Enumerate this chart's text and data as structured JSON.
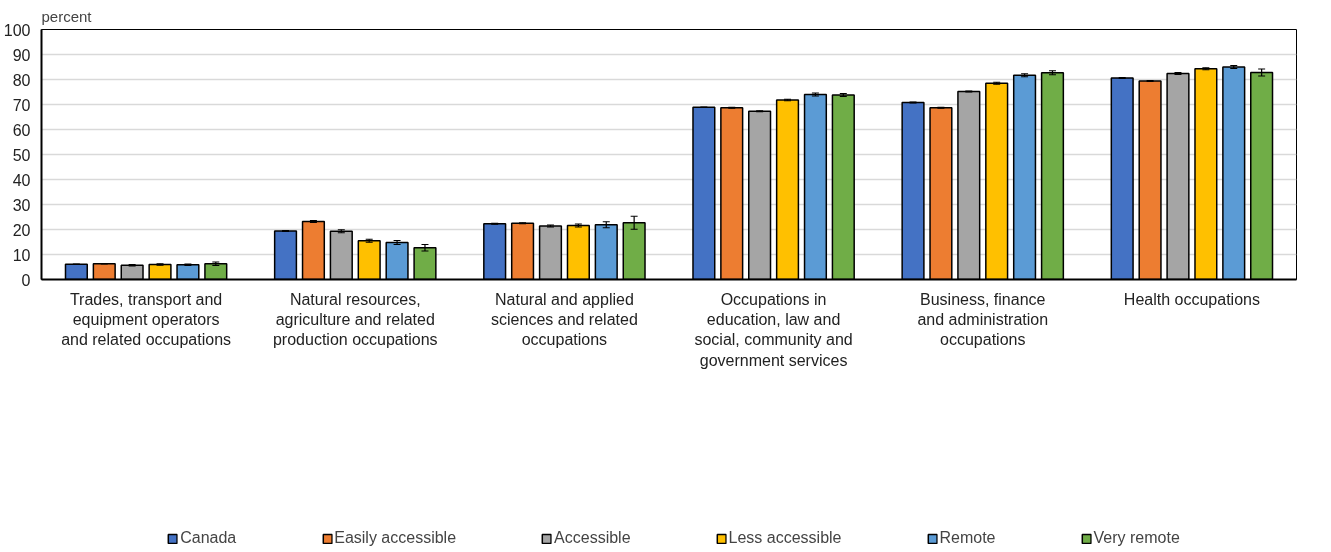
{
  "chart_data": {
    "type": "bar",
    "ylabel": "percent",
    "categories": [
      "Trades, transport and\nequipment operators\nand related occupations",
      "Natural resources,\nagriculture and related\nproduction occupations",
      "Natural and applied\nsciences and related\noccupations",
      "Occupations in\neducation, law and\nsocial, community and\ngovernment services",
      "Business, finance\nand administration\noccupations",
      "Health occupations"
    ],
    "series": [
      {
        "name": "Canada",
        "color": "#4472c4",
        "values": [
          6.1,
          19.4,
          22.3,
          68.9,
          70.8,
          80.6
        ],
        "errors": [
          0.1,
          0.2,
          0.2,
          0.1,
          0.2,
          0.2
        ]
      },
      {
        "name": "Easily accessible",
        "color": "#ed7d31",
        "values": [
          6.3,
          23.2,
          22.5,
          68.7,
          68.7,
          79.4
        ],
        "errors": [
          0.1,
          0.4,
          0.2,
          0.2,
          0.2,
          0.2
        ]
      },
      {
        "name": "Accessible",
        "color": "#a5a5a5",
        "values": [
          5.7,
          19.3,
          21.4,
          67.3,
          75.2,
          82.4
        ],
        "errors": [
          0.3,
          0.6,
          0.4,
          0.2,
          0.2,
          0.4
        ]
      },
      {
        "name": "Less accessible",
        "color": "#ffc000",
        "values": [
          6.0,
          15.5,
          21.6,
          71.8,
          78.5,
          84.3
        ],
        "errors": [
          0.3,
          0.6,
          0.6,
          0.3,
          0.4,
          0.4
        ]
      },
      {
        "name": "Remote",
        "color": "#5b9bd5",
        "values": [
          5.9,
          14.8,
          21.9,
          74.0,
          81.7,
          85.0
        ],
        "errors": [
          0.3,
          0.8,
          1.2,
          0.6,
          0.6,
          0.6
        ]
      },
      {
        "name": "Very remote",
        "color": "#70ad47",
        "values": [
          6.3,
          12.7,
          22.7,
          73.8,
          82.7,
          82.8
        ],
        "errors": [
          0.7,
          1.3,
          2.6,
          0.6,
          0.8,
          1.4
        ]
      }
    ],
    "ylim": [
      0,
      100
    ],
    "yticks": [
      0,
      10,
      20,
      30,
      40,
      50,
      60,
      70,
      80,
      90,
      100
    ],
    "grid": "y",
    "legend": "bottom"
  }
}
